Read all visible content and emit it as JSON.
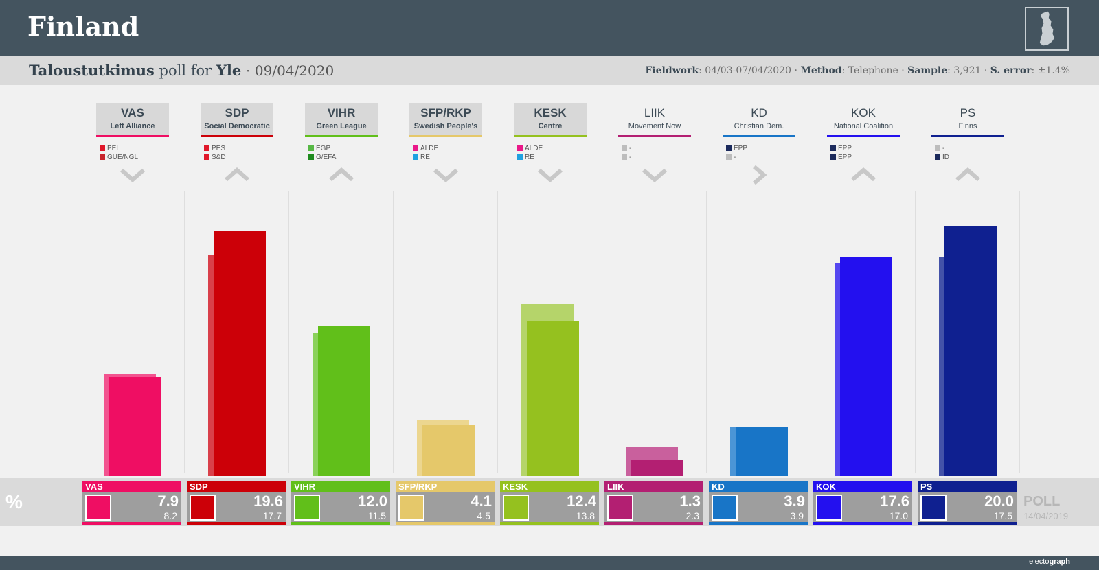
{
  "header": {
    "title": "Finland",
    "map_icon": "finland-map-icon"
  },
  "subtitle": {
    "pollster": "Taloustutkimus",
    "poll_for_text": "poll for",
    "client": "Yle",
    "separator": "·",
    "date": "09/04/2020",
    "fieldwork_label": "Fieldwork",
    "fieldwork_value": "04/03-07/04/2020",
    "method_label": "Method",
    "method_value": "Telephone",
    "sample_label": "Sample",
    "sample_value": "3,921",
    "error_label": "S. error",
    "error_value": "±1.4%"
  },
  "percent_label": "%",
  "poll_ref": {
    "label": "POLL",
    "date": "14/04/2019"
  },
  "brand": {
    "prefix": "electo",
    "suffix": "graph"
  },
  "chart_data": {
    "type": "bar",
    "title": "Taloustutkimus poll for Yle · 09/04/2020",
    "ylabel": "%",
    "ylim": [
      0,
      21.2
    ],
    "categories": [
      "VAS",
      "SDP",
      "VIHR",
      "SFP/RKP",
      "KESK",
      "LIIK",
      "KD",
      "KOK",
      "PS"
    ],
    "series": [
      {
        "name": "Poll 09/04/2020",
        "values": [
          7.9,
          19.6,
          12.0,
          4.1,
          12.4,
          1.3,
          3.9,
          17.6,
          20.0
        ]
      },
      {
        "name": "Poll 14/04/2019",
        "values": [
          8.2,
          17.7,
          11.5,
          4.5,
          13.8,
          2.3,
          3.9,
          17.0,
          17.5
        ]
      }
    ],
    "parties": [
      {
        "abbr": "VAS",
        "name": "Left Alliance",
        "color": "#ef0e63",
        "prev_color": "#f2538f",
        "filled": true,
        "trend": "down",
        "groups": [
          {
            "label": "PEL",
            "color": "#e0182a"
          },
          {
            "label": "GUE/NGL",
            "color": "#c8252c"
          }
        ],
        "value": 7.9,
        "prev": 8.2
      },
      {
        "abbr": "SDP",
        "name": "Social Democratic",
        "color": "#cc0008",
        "prev_color": "#d9404a",
        "filled": true,
        "trend": "up",
        "groups": [
          {
            "label": "PES",
            "color": "#e0182a"
          },
          {
            "label": "S&D",
            "color": "#e0182a"
          }
        ],
        "value": 19.6,
        "prev": 17.7
      },
      {
        "abbr": "VIHR",
        "name": "Green League",
        "color": "#61bf1a",
        "prev_color": "#8ad15a",
        "filled": true,
        "trend": "up",
        "groups": [
          {
            "label": "EGP",
            "color": "#57b846"
          },
          {
            "label": "G/EFA",
            "color": "#1e8a1e"
          }
        ],
        "value": 12.0,
        "prev": 11.5
      },
      {
        "abbr": "SFP/RKP",
        "name": "Swedish People's",
        "color": "#e5c86a",
        "prev_color": "#ecd68f",
        "filled": true,
        "trend": "down",
        "groups": [
          {
            "label": "ALDE",
            "color": "#ea1889"
          },
          {
            "label": "RE",
            "color": "#1fa1e0"
          }
        ],
        "value": 4.1,
        "prev": 4.5
      },
      {
        "abbr": "KESK",
        "name": "Centre",
        "color": "#95c11f",
        "prev_color": "#b5d46a",
        "filled": true,
        "trend": "down",
        "groups": [
          {
            "label": "ALDE",
            "color": "#ea1889"
          },
          {
            "label": "RE",
            "color": "#1fa1e0"
          }
        ],
        "value": 12.4,
        "prev": 13.8
      },
      {
        "abbr": "LIIK",
        "name": "Movement Now",
        "color": "#b31f72",
        "prev_color": "#c9609d",
        "filled": false,
        "trend": "down",
        "groups": [
          {
            "label": "-",
            "color": "#bdbdbd"
          },
          {
            "label": "-",
            "color": "#bdbdbd"
          }
        ],
        "value": 1.3,
        "prev": 2.3
      },
      {
        "abbr": "KD",
        "name": "Christian Dem.",
        "color": "#1875c7",
        "prev_color": "#4b95d6",
        "filled": false,
        "trend": "right",
        "groups": [
          {
            "label": "EPP",
            "color": "#1b2a5c"
          },
          {
            "label": "-",
            "color": "#bdbdbd"
          }
        ],
        "value": 3.9,
        "prev": 3.9
      },
      {
        "abbr": "KOK",
        "name": "National Coalition",
        "color": "#2310ef",
        "prev_color": "#5547f0",
        "filled": false,
        "trend": "up",
        "groups": [
          {
            "label": "EPP",
            "color": "#1b2a5c"
          },
          {
            "label": "EPP",
            "color": "#1b2a5c"
          }
        ],
        "value": 17.6,
        "prev": 17.0
      },
      {
        "abbr": "PS",
        "name": "Finns",
        "color": "#0f2090",
        "prev_color": "#4352a8",
        "filled": false,
        "trend": "up",
        "groups": [
          {
            "label": "-",
            "color": "#bdbdbd"
          },
          {
            "label": "ID",
            "color": "#1b2a5c"
          }
        ],
        "value": 20.0,
        "prev": 17.5
      }
    ]
  }
}
